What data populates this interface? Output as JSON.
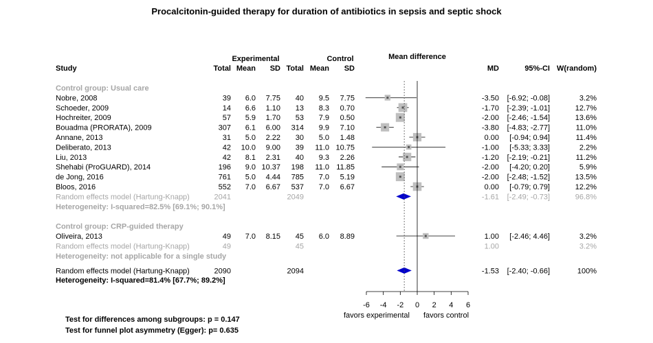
{
  "title": "Procalcitonin-guided therapy for duration of antibiotics in sepsis and septic shock",
  "headers": {
    "experimental": "Experimental",
    "control": "Control",
    "mean_difference": "Mean difference",
    "study": "Study",
    "total": "Total",
    "mean": "Mean",
    "sd": "SD",
    "md": "MD",
    "ci": "95%-CI",
    "weight": "W(random)"
  },
  "chart_data": {
    "type": "forest",
    "xlim": [
      -6,
      6
    ],
    "ticks": [
      "-6",
      "-4",
      "-2",
      "0",
      "2",
      "4",
      "6"
    ],
    "tick_values": [
      -6,
      -4,
      -2,
      0,
      2,
      4,
      6
    ],
    "xlabel_left": "favors experimental",
    "xlabel_right": "favors control",
    "reference_line": 0,
    "overall_line": -1.53,
    "groups": [
      {
        "label": "Control group: Usual care",
        "studies": [
          {
            "study": "Nobre, 2008",
            "e_total": "39",
            "e_mean": "6.0",
            "e_sd": "7.75",
            "c_total": "40",
            "c_mean": "9.5",
            "c_sd": "7.75",
            "md": -3.5,
            "lo": -6.92,
            "hi": -0.08,
            "md_text": "-3.50",
            "ci_text": "[-6.92; -0.08]",
            "w_text": "3.2%",
            "w": 3.2
          },
          {
            "study": "Schoeder, 2009",
            "e_total": "14",
            "e_mean": "6.6",
            "e_sd": "1.10",
            "c_total": "13",
            "c_mean": "8.3",
            "c_sd": "0.70",
            "md": -1.7,
            "lo": -2.39,
            "hi": -1.01,
            "md_text": "-1.70",
            "ci_text": "[-2.39; -1.01]",
            "w_text": "12.7%",
            "w": 12.7
          },
          {
            "study": "Hochreiter, 2009",
            "e_total": "57",
            "e_mean": "5.9",
            "e_sd": "1.70",
            "c_total": "53",
            "c_mean": "7.9",
            "c_sd": "0.50",
            "md": -2.0,
            "lo": -2.46,
            "hi": -1.54,
            "md_text": "-2.00",
            "ci_text": "[-2.46; -1.54]",
            "w_text": "13.6%",
            "w": 13.6
          },
          {
            "study": "Bouadma (PRORATA), 2009",
            "e_total": "307",
            "e_mean": "6.1",
            "e_sd": "6.00",
            "c_total": "314",
            "c_mean": "9.9",
            "c_sd": "7.10",
            "md": -3.8,
            "lo": -4.83,
            "hi": -2.77,
            "md_text": "-3.80",
            "ci_text": "[-4.83; -2.77]",
            "w_text": "11.0%",
            "w": 11.0
          },
          {
            "study": "Annane, 2013",
            "e_total": "31",
            "e_mean": "5.0",
            "e_sd": "2.22",
            "c_total": "30",
            "c_mean": "5.0",
            "c_sd": "1.48",
            "md": 0.0,
            "lo": -0.94,
            "hi": 0.94,
            "md_text": "0.00",
            "ci_text": "[-0.94; 0.94]",
            "w_text": "11.4%",
            "w": 11.4
          },
          {
            "study": "Deliberato, 2013",
            "e_total": "42",
            "e_mean": "10.0",
            "e_sd": "9.00",
            "c_total": "39",
            "c_mean": "11.0",
            "c_sd": "10.75",
            "md": -1.0,
            "lo": -5.33,
            "hi": 3.33,
            "md_text": "-1.00",
            "ci_text": "[-5.33; 3.33]",
            "w_text": "2.2%",
            "w": 2.2
          },
          {
            "study": "Liu, 2013",
            "e_total": "42",
            "e_mean": "8.1",
            "e_sd": "2.31",
            "c_total": "40",
            "c_mean": "9.3",
            "c_sd": "2.26",
            "md": -1.2,
            "lo": -2.19,
            "hi": -0.21,
            "md_text": "-1.20",
            "ci_text": "[-2.19; -0.21]",
            "w_text": "11.2%",
            "w": 11.2
          },
          {
            "study": "Shehabi (ProGUARD), 2014",
            "e_total": "196",
            "e_mean": "9.0",
            "e_sd": "10.37",
            "c_total": "198",
            "c_mean": "11.0",
            "c_sd": "11.85",
            "md": -2.0,
            "lo": -4.2,
            "hi": 0.2,
            "md_text": "-2.00",
            "ci_text": "[-4.20; 0.20]",
            "w_text": "5.9%",
            "w": 5.9
          },
          {
            "study": "de Jong, 2016",
            "e_total": "761",
            "e_mean": "5.0",
            "e_sd": "4.44",
            "c_total": "785",
            "c_mean": "7.0",
            "c_sd": "5.19",
            "md": -2.0,
            "lo": -2.48,
            "hi": -1.52,
            "md_text": "-2.00",
            "ci_text": "[-2.48; -1.52]",
            "w_text": "13.5%",
            "w": 13.5
          },
          {
            "study": "Bloos, 2016",
            "e_total": "552",
            "e_mean": "7.0",
            "e_sd": "6.67",
            "c_total": "537",
            "c_mean": "7.0",
            "c_sd": "6.67",
            "md": 0.0,
            "lo": -0.79,
            "hi": 0.79,
            "md_text": "0.00",
            "ci_text": "[-0.79; 0.79]",
            "w_text": "12.2%",
            "w": 12.2
          }
        ],
        "summary": {
          "label": "Random effects model  (Hartung-Knapp)",
          "e_total": "2041",
          "c_total": "2049",
          "md": -1.61,
          "lo": -2.49,
          "hi": -0.73,
          "md_text": "-1.61",
          "ci_text": "[-2.49; -0.73]",
          "w_text": "96.8%"
        },
        "heterogeneity": "Heterogeneity: I-squared=82.5% [69.1%; 90.1%]"
      },
      {
        "label": "Control group: CRP-guided therapy",
        "studies": [
          {
            "study": "Oliveira, 2013",
            "e_total": "49",
            "e_mean": "7.0",
            "e_sd": "8.15",
            "c_total": "45",
            "c_mean": "6.0",
            "c_sd": "8.89",
            "md": 1.0,
            "lo": -2.46,
            "hi": 4.46,
            "md_text": "1.00",
            "ci_text": "[-2.46; 4.46]",
            "w_text": "3.2%",
            "w": 3.2
          }
        ],
        "summary": {
          "label": "Random effects model  (Hartung-Knapp)",
          "e_total": "49",
          "c_total": "45",
          "md": 1.0,
          "lo": null,
          "hi": null,
          "md_text": "1.00",
          "ci_text": "",
          "w_text": "3.2%"
        },
        "heterogeneity": "Heterogeneity: not applicable for a single study"
      }
    ],
    "overall": {
      "label": "Random effects model  (Hartung-Knapp)",
      "e_total": "2090",
      "c_total": "2094",
      "md": -1.53,
      "lo": -2.4,
      "hi": -0.66,
      "md_text": "-1.53",
      "ci_text": "[-2.40; -0.66]",
      "w_text": "100%"
    },
    "overall_heterogeneity": "Heterogeneity: I-squared=81.4% [67.7%; 89.2%]"
  },
  "footer": {
    "subgroup_test": "Test for differences among subgroups: p = 0.147",
    "egger_test": "Test for funnel plot asymmetry (Egger): p= 0.635"
  }
}
